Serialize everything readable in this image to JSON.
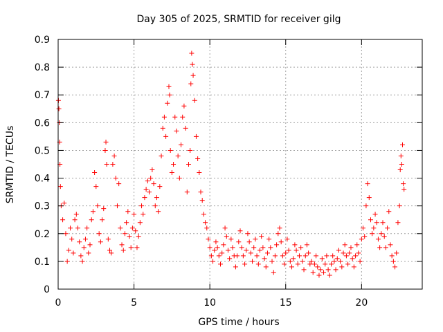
{
  "chart_data": {
    "type": "scatter",
    "title": "Day 305 of 2025, SRMTID for receiver gilg",
    "xlabel": "GPS time / hours",
    "ylabel": "SRMTID / TECUs",
    "xlim": [
      0,
      24
    ],
    "ylim": [
      0,
      0.9
    ],
    "xticks": [
      0,
      5,
      10,
      15,
      20
    ],
    "yticks": [
      0,
      0.1,
      0.2,
      0.3,
      0.4,
      0.5,
      0.6,
      0.7,
      0.8,
      0.9
    ],
    "xtick_labels": [
      "0",
      "5",
      "10",
      "15",
      "20"
    ],
    "ytick_labels": [
      "0",
      "0.1",
      "0.2",
      "0.3",
      "0.4",
      "0.5",
      "0.6",
      "0.7",
      "0.8",
      "0.9"
    ],
    "grid": true,
    "marker": "+",
    "color": "#ff0000",
    "series": [
      {
        "name": "SRMTID",
        "points": [
          [
            0.02,
            0.68
          ],
          [
            0.05,
            0.65
          ],
          [
            0.08,
            0.6
          ],
          [
            0.1,
            0.53
          ],
          [
            0.12,
            0.45
          ],
          [
            0.15,
            0.37
          ],
          [
            0.2,
            0.3
          ],
          [
            0.3,
            0.25
          ],
          [
            0.4,
            0.31
          ],
          [
            0.5,
            0.2
          ],
          [
            0.6,
            0.1
          ],
          [
            0.7,
            0.14
          ],
          [
            0.8,
            0.22
          ],
          [
            0.9,
            0.18
          ],
          [
            1.0,
            0.13
          ],
          [
            1.1,
            0.25
          ],
          [
            1.2,
            0.27
          ],
          [
            1.3,
            0.22
          ],
          [
            1.4,
            0.17
          ],
          [
            1.5,
            0.12
          ],
          [
            1.6,
            0.1
          ],
          [
            1.7,
            0.15
          ],
          [
            1.8,
            0.18
          ],
          [
            1.9,
            0.22
          ],
          [
            2.0,
            0.13
          ],
          [
            2.1,
            0.16
          ],
          [
            2.2,
            0.25
          ],
          [
            2.3,
            0.28
          ],
          [
            2.4,
            0.42
          ],
          [
            2.5,
            0.37
          ],
          [
            2.6,
            0.3
          ],
          [
            2.7,
            0.2
          ],
          [
            2.8,
            0.17
          ],
          [
            2.9,
            0.25
          ],
          [
            3.0,
            0.29
          ],
          [
            3.1,
            0.5
          ],
          [
            3.15,
            0.53
          ],
          [
            3.2,
            0.45
          ],
          [
            3.3,
            0.18
          ],
          [
            3.4,
            0.14
          ],
          [
            3.5,
            0.13
          ],
          [
            3.6,
            0.45
          ],
          [
            3.7,
            0.48
          ],
          [
            3.8,
            0.4
          ],
          [
            3.9,
            0.3
          ],
          [
            4.0,
            0.38
          ],
          [
            4.1,
            0.22
          ],
          [
            4.2,
            0.16
          ],
          [
            4.3,
            0.14
          ],
          [
            4.4,
            0.2
          ],
          [
            4.5,
            0.24
          ],
          [
            4.6,
            0.28
          ],
          [
            4.7,
            0.19
          ],
          [
            4.8,
            0.15
          ],
          [
            4.9,
            0.22
          ],
          [
            5.0,
            0.27
          ],
          [
            5.1,
            0.21
          ],
          [
            5.2,
            0.15
          ],
          [
            5.3,
            0.19
          ],
          [
            5.4,
            0.24
          ],
          [
            5.5,
            0.3
          ],
          [
            5.6,
            0.27
          ],
          [
            5.7,
            0.33
          ],
          [
            5.8,
            0.36
          ],
          [
            5.9,
            0.39
          ],
          [
            6.0,
            0.35
          ],
          [
            6.1,
            0.4
          ],
          [
            6.2,
            0.43
          ],
          [
            6.3,
            0.38
          ],
          [
            6.4,
            0.3
          ],
          [
            6.5,
            0.33
          ],
          [
            6.6,
            0.28
          ],
          [
            6.7,
            0.37
          ],
          [
            6.8,
            0.48
          ],
          [
            6.9,
            0.58
          ],
          [
            7.0,
            0.62
          ],
          [
            7.1,
            0.55
          ],
          [
            7.2,
            0.67
          ],
          [
            7.3,
            0.73
          ],
          [
            7.35,
            0.7
          ],
          [
            7.4,
            0.5
          ],
          [
            7.5,
            0.42
          ],
          [
            7.6,
            0.45
          ],
          [
            7.7,
            0.62
          ],
          [
            7.8,
            0.57
          ],
          [
            7.9,
            0.48
          ],
          [
            8.0,
            0.4
          ],
          [
            8.1,
            0.52
          ],
          [
            8.2,
            0.62
          ],
          [
            8.3,
            0.66
          ],
          [
            8.4,
            0.58
          ],
          [
            8.5,
            0.35
          ],
          [
            8.6,
            0.45
          ],
          [
            8.7,
            0.5
          ],
          [
            8.75,
            0.74
          ],
          [
            8.8,
            0.85
          ],
          [
            8.85,
            0.81
          ],
          [
            8.9,
            0.77
          ],
          [
            9.0,
            0.68
          ],
          [
            9.1,
            0.55
          ],
          [
            9.2,
            0.47
          ],
          [
            9.3,
            0.42
          ],
          [
            9.4,
            0.35
          ],
          [
            9.5,
            0.32
          ],
          [
            9.6,
            0.27
          ],
          [
            9.7,
            0.24
          ],
          [
            9.8,
            0.22
          ],
          [
            9.9,
            0.18
          ],
          [
            10.0,
            0.15
          ],
          [
            10.1,
            0.12
          ],
          [
            10.2,
            0.1
          ],
          [
            10.3,
            0.14
          ],
          [
            10.4,
            0.17
          ],
          [
            10.5,
            0.15
          ],
          [
            10.6,
            0.12
          ],
          [
            10.7,
            0.09
          ],
          [
            10.8,
            0.13
          ],
          [
            10.9,
            0.16
          ],
          [
            11.0,
            0.22
          ],
          [
            11.1,
            0.19
          ],
          [
            11.2,
            0.14
          ],
          [
            11.3,
            0.11
          ],
          [
            11.4,
            0.18
          ],
          [
            11.5,
            0.15
          ],
          [
            11.6,
            0.12
          ],
          [
            11.7,
            0.08
          ],
          [
            11.8,
            0.12
          ],
          [
            11.9,
            0.17
          ],
          [
            12.0,
            0.21
          ],
          [
            12.1,
            0.15
          ],
          [
            12.2,
            0.12
          ],
          [
            12.3,
            0.09
          ],
          [
            12.4,
            0.14
          ],
          [
            12.5,
            0.2
          ],
          [
            12.6,
            0.17
          ],
          [
            12.7,
            0.13
          ],
          [
            12.8,
            0.1
          ],
          [
            12.9,
            0.15
          ],
          [
            13.0,
            0.18
          ],
          [
            13.1,
            0.12
          ],
          [
            13.2,
            0.09
          ],
          [
            13.3,
            0.14
          ],
          [
            13.4,
            0.19
          ],
          [
            13.5,
            0.15
          ],
          [
            13.6,
            0.11
          ],
          [
            13.7,
            0.08
          ],
          [
            13.8,
            0.13
          ],
          [
            13.9,
            0.18
          ],
          [
            14.0,
            0.15
          ],
          [
            14.1,
            0.1
          ],
          [
            14.2,
            0.06
          ],
          [
            14.3,
            0.12
          ],
          [
            14.4,
            0.16
          ],
          [
            14.5,
            0.2
          ],
          [
            14.6,
            0.22
          ],
          [
            14.7,
            0.17
          ],
          [
            14.8,
            0.12
          ],
          [
            14.9,
            0.09
          ],
          [
            15.0,
            0.13
          ],
          [
            15.1,
            0.18
          ],
          [
            15.2,
            0.14
          ],
          [
            15.3,
            0.1
          ],
          [
            15.4,
            0.08
          ],
          [
            15.5,
            0.11
          ],
          [
            15.6,
            0.16
          ],
          [
            15.7,
            0.14
          ],
          [
            15.8,
            0.09
          ],
          [
            15.9,
            0.12
          ],
          [
            16.0,
            0.15
          ],
          [
            16.1,
            0.1
          ],
          [
            16.2,
            0.07
          ],
          [
            16.3,
            0.12
          ],
          [
            16.4,
            0.16
          ],
          [
            16.5,
            0.13
          ],
          [
            16.6,
            0.09
          ],
          [
            16.7,
            0.1
          ],
          [
            16.8,
            0.06
          ],
          [
            16.9,
            0.09
          ],
          [
            17.0,
            0.12
          ],
          [
            17.1,
            0.08
          ],
          [
            17.2,
            0.05
          ],
          [
            17.3,
            0.07
          ],
          [
            17.4,
            0.11
          ],
          [
            17.5,
            0.06
          ],
          [
            17.6,
            0.09
          ],
          [
            17.7,
            0.12
          ],
          [
            17.8,
            0.07
          ],
          [
            17.9,
            0.05
          ],
          [
            18.0,
            0.09
          ],
          [
            18.1,
            0.12
          ],
          [
            18.2,
            0.1
          ],
          [
            18.3,
            0.07
          ],
          [
            18.4,
            0.11
          ],
          [
            18.5,
            0.14
          ],
          [
            18.6,
            0.1
          ],
          [
            18.7,
            0.08
          ],
          [
            18.8,
            0.13
          ],
          [
            18.9,
            0.16
          ],
          [
            19.0,
            0.12
          ],
          [
            19.1,
            0.09
          ],
          [
            19.2,
            0.13
          ],
          [
            19.3,
            0.15
          ],
          [
            19.4,
            0.11
          ],
          [
            19.5,
            0.08
          ],
          [
            19.6,
            0.12
          ],
          [
            19.7,
            0.16
          ],
          [
            19.8,
            0.13
          ],
          [
            19.9,
            0.1
          ],
          [
            20.0,
            0.18
          ],
          [
            20.1,
            0.22
          ],
          [
            20.2,
            0.19
          ],
          [
            20.3,
            0.3
          ],
          [
            20.4,
            0.38
          ],
          [
            20.5,
            0.33
          ],
          [
            20.6,
            0.25
          ],
          [
            20.7,
            0.2
          ],
          [
            20.8,
            0.22
          ],
          [
            20.9,
            0.27
          ],
          [
            21.0,
            0.24
          ],
          [
            21.1,
            0.18
          ],
          [
            21.2,
            0.15
          ],
          [
            21.3,
            0.2
          ],
          [
            21.4,
            0.24
          ],
          [
            21.5,
            0.19
          ],
          [
            21.6,
            0.15
          ],
          [
            21.7,
            0.22
          ],
          [
            21.8,
            0.28
          ],
          [
            21.9,
            0.16
          ],
          [
            22.0,
            0.12
          ],
          [
            22.1,
            0.1
          ],
          [
            22.2,
            0.08
          ],
          [
            22.3,
            0.13
          ],
          [
            22.4,
            0.24
          ],
          [
            22.5,
            0.3
          ],
          [
            22.55,
            0.43
          ],
          [
            22.6,
            0.48
          ],
          [
            22.65,
            0.45
          ],
          [
            22.7,
            0.52
          ],
          [
            22.75,
            0.38
          ],
          [
            22.8,
            0.36
          ]
        ]
      }
    ]
  }
}
